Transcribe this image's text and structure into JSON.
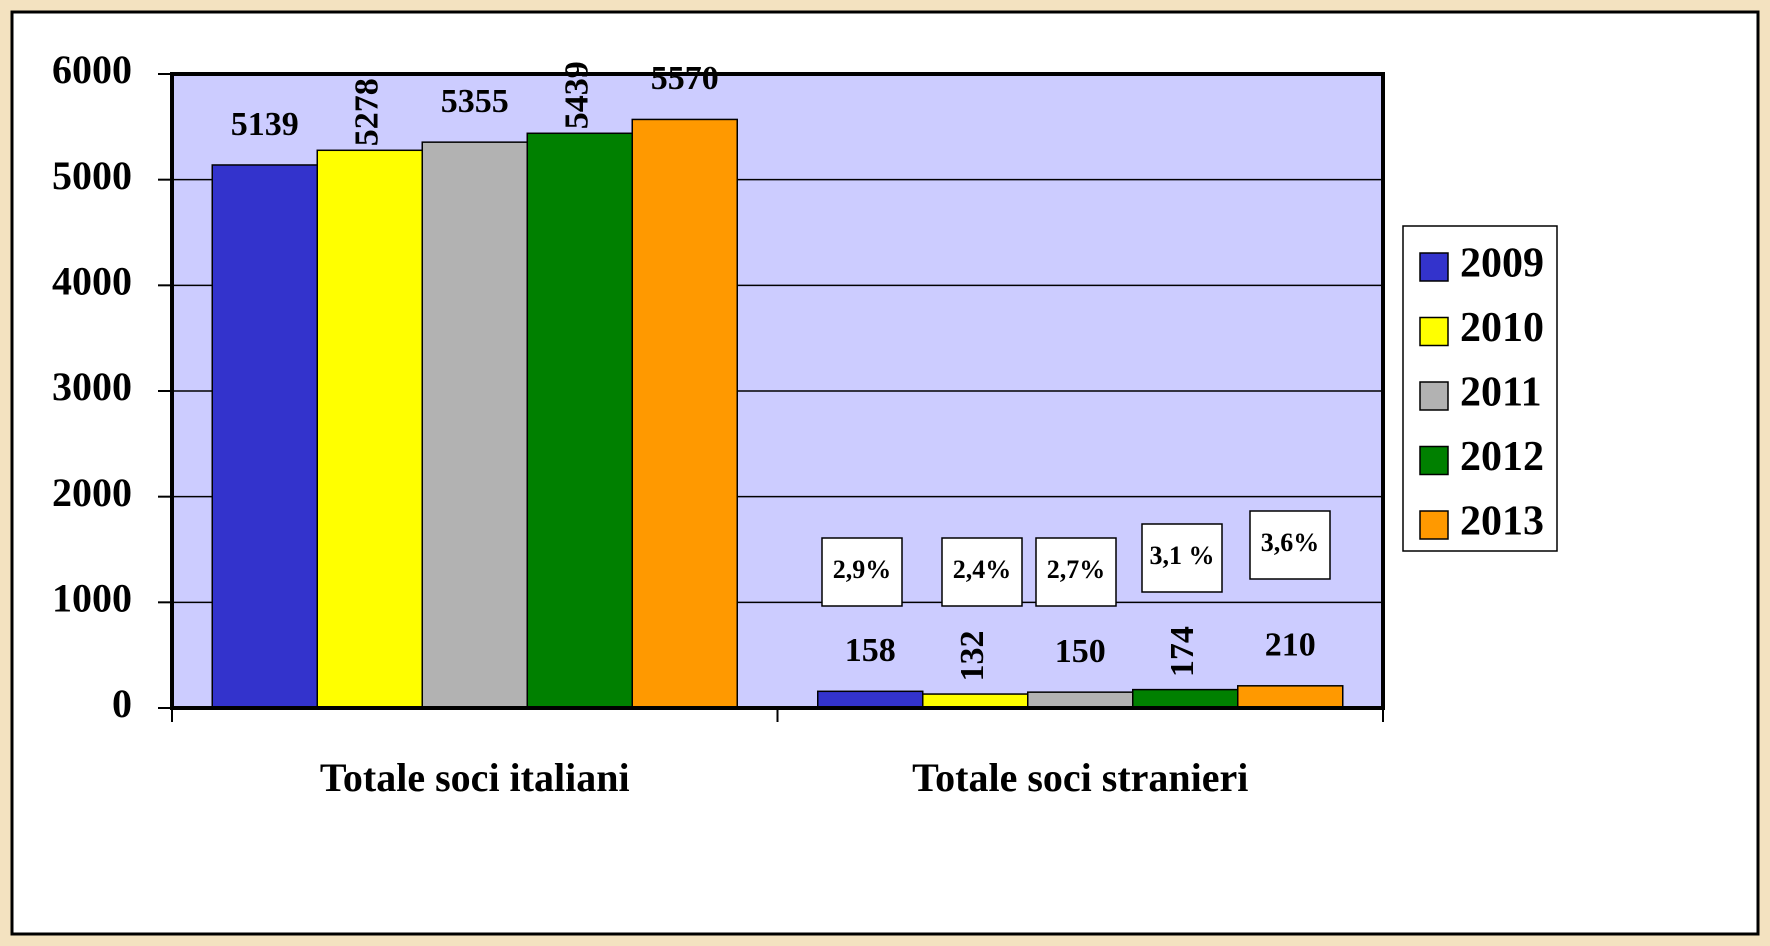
{
  "chart_data": {
    "type": "bar",
    "categories": [
      "Totale soci italiani",
      "Totale soci stranieri"
    ],
    "series": [
      {
        "name": "2009",
        "color": "#3333cc",
        "values": [
          5139,
          158
        ]
      },
      {
        "name": "2010",
        "color": "#ffff00",
        "values": [
          5278,
          132
        ]
      },
      {
        "name": "2011",
        "color": "#b2b2b2",
        "values": [
          5355,
          150
        ]
      },
      {
        "name": "2012",
        "color": "#008000",
        "values": [
          5439,
          174
        ]
      },
      {
        "name": "2013",
        "color": "#ff9900",
        "values": [
          5570,
          210
        ]
      }
    ],
    "annotations": [
      "2,9%",
      "2,4%",
      "2,7%",
      "3,1 %",
      "3,6%"
    ],
    "ylim": [
      0,
      6000
    ],
    "yticks": [
      0,
      1000,
      2000,
      3000,
      4000,
      5000,
      6000
    ],
    "grid": true,
    "legend": "right",
    "plot_background": "#ccccff"
  }
}
